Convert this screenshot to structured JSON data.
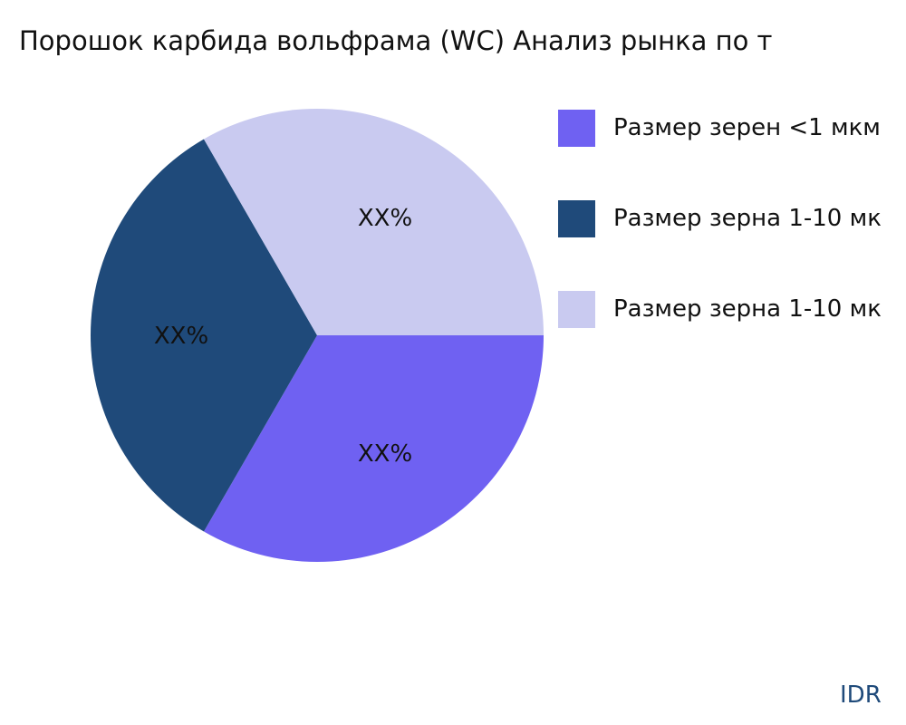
{
  "chart_data": {
    "type": "pie",
    "title": "Порошок карбида вольфрама (WC) Анализ рынка по т",
    "categories": [
      "Размер зерен <1 мкм",
      "Размер зерна 1-10 мк",
      "Размер зерна 1-10 мк"
    ],
    "values": [
      33.3,
      33.3,
      33.3
    ],
    "data_labels": [
      "XX%",
      "XX%",
      "XX%"
    ],
    "colors": [
      "#6f61f2",
      "#1f4a7a",
      "#c9caf0"
    ],
    "legend_position": "right"
  },
  "brand": "IDR"
}
